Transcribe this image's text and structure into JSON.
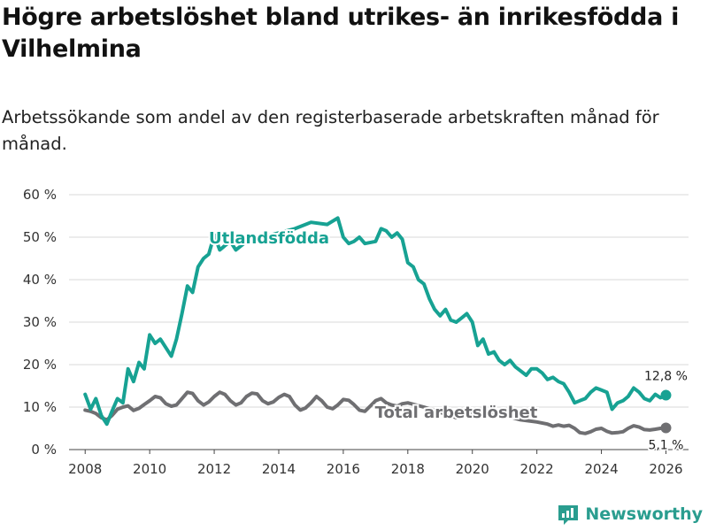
{
  "title": "Högre arbetslöshet bland utrikes- än inrikesfödda i Vilhelmina",
  "subtitle": "Arbetssökande som andel av den registerbaserade arbetskraften månad för månad.",
  "brand": {
    "name": "Newsworthy",
    "icon": "newsworthy-logo-icon"
  },
  "colors": {
    "foreign": "#17a293",
    "total": "#6f6f72",
    "grid": "#d9d9d9",
    "brand": "#2a9d8f"
  },
  "chart_data": {
    "type": "line",
    "title": "Högre arbetslöshet bland utrikes- än inrikesfödda i Vilhelmina",
    "subtitle": "Arbetssökande som andel av den registerbaserade arbetskraften månad för månad.",
    "xlabel": "",
    "ylabel": "",
    "xlim": [
      2007.5,
      2026.7
    ],
    "ylim": [
      0,
      60
    ],
    "grid": true,
    "x_ticks": [
      2008,
      2010,
      2012,
      2014,
      2016,
      2018,
      2020,
      2022,
      2024,
      2026
    ],
    "x_tick_labels": [
      "2008",
      "2010",
      "2012",
      "2014",
      "2016",
      "2018",
      "2020",
      "2022",
      "2024",
      "2026"
    ],
    "y_ticks": [
      0,
      10,
      20,
      30,
      40,
      50,
      60
    ],
    "y_tick_labels": [
      "0 %",
      "10 %",
      "20 %",
      "30 %",
      "40 %",
      "50 %",
      "60 %"
    ],
    "series": [
      {
        "name": "Utlandsfödda",
        "label": "Utlandsfödda",
        "end_label": "12,8 %",
        "points": [
          [
            2008.0,
            13
          ],
          [
            2008.17,
            9.5
          ],
          [
            2008.33,
            12
          ],
          [
            2008.5,
            8
          ],
          [
            2008.67,
            6
          ],
          [
            2008.83,
            9
          ],
          [
            2009.0,
            12
          ],
          [
            2009.17,
            11
          ],
          [
            2009.33,
            19
          ],
          [
            2009.5,
            16
          ],
          [
            2009.67,
            20.5
          ],
          [
            2009.83,
            19
          ],
          [
            2010.0,
            27
          ],
          [
            2010.17,
            25
          ],
          [
            2010.33,
            26
          ],
          [
            2010.5,
            24
          ],
          [
            2010.67,
            22
          ],
          [
            2010.83,
            26
          ],
          [
            2011.0,
            32
          ],
          [
            2011.17,
            38.5
          ],
          [
            2011.33,
            37
          ],
          [
            2011.5,
            43
          ],
          [
            2011.67,
            45
          ],
          [
            2011.83,
            46
          ],
          [
            2012.0,
            50.5
          ],
          [
            2012.17,
            47
          ],
          [
            2012.33,
            48
          ],
          [
            2012.5,
            49
          ],
          [
            2012.67,
            47
          ],
          [
            2013.0,
            49
          ],
          [
            2013.5,
            50
          ],
          [
            2014.0,
            51
          ],
          [
            2014.5,
            52
          ],
          [
            2015.0,
            53.5
          ],
          [
            2015.5,
            53
          ],
          [
            2015.83,
            54.5
          ],
          [
            2016.0,
            50
          ],
          [
            2016.17,
            48.5
          ],
          [
            2016.33,
            49
          ],
          [
            2016.5,
            50
          ],
          [
            2016.67,
            48.5
          ],
          [
            2017.0,
            49
          ],
          [
            2017.17,
            52
          ],
          [
            2017.33,
            51.5
          ],
          [
            2017.5,
            50
          ],
          [
            2017.67,
            51
          ],
          [
            2017.83,
            49.5
          ],
          [
            2018.0,
            44
          ],
          [
            2018.17,
            43
          ],
          [
            2018.33,
            40
          ],
          [
            2018.5,
            39
          ],
          [
            2018.67,
            35.5
          ],
          [
            2018.83,
            33
          ],
          [
            2019.0,
            31.5
          ],
          [
            2019.17,
            33
          ],
          [
            2019.33,
            30.5
          ],
          [
            2019.5,
            30
          ],
          [
            2019.67,
            31
          ],
          [
            2019.83,
            32
          ],
          [
            2020.0,
            30
          ],
          [
            2020.17,
            24.5
          ],
          [
            2020.33,
            26
          ],
          [
            2020.5,
            22.5
          ],
          [
            2020.67,
            23
          ],
          [
            2020.83,
            21
          ],
          [
            2021.0,
            20
          ],
          [
            2021.17,
            21
          ],
          [
            2021.33,
            19.5
          ],
          [
            2021.5,
            18.5
          ],
          [
            2021.67,
            17.5
          ],
          [
            2021.83,
            19
          ],
          [
            2022.0,
            19
          ],
          [
            2022.17,
            18
          ],
          [
            2022.33,
            16.5
          ],
          [
            2022.5,
            17
          ],
          [
            2022.67,
            16
          ],
          [
            2022.83,
            15.5
          ],
          [
            2023.0,
            13.5
          ],
          [
            2023.17,
            11
          ],
          [
            2023.33,
            11.5
          ],
          [
            2023.5,
            12
          ],
          [
            2023.67,
            13.5
          ],
          [
            2023.83,
            14.5
          ],
          [
            2024.0,
            14
          ],
          [
            2024.17,
            13.5
          ],
          [
            2024.33,
            9.5
          ],
          [
            2024.5,
            11
          ],
          [
            2024.67,
            11.5
          ],
          [
            2024.83,
            12.5
          ],
          [
            2025.0,
            14.5
          ],
          [
            2025.17,
            13.5
          ],
          [
            2025.33,
            12
          ],
          [
            2025.5,
            11.5
          ],
          [
            2025.67,
            13
          ],
          [
            2025.83,
            12.2
          ],
          [
            2026.0,
            12.8
          ]
        ]
      },
      {
        "name": "Total arbetslöshet",
        "label": "Total arbetslöshet",
        "end_label": "5,1 %",
        "points": [
          [
            2008.0,
            9.3
          ],
          [
            2008.17,
            9
          ],
          [
            2008.33,
            8.5
          ],
          [
            2008.5,
            7.5
          ],
          [
            2008.67,
            7
          ],
          [
            2008.83,
            8
          ],
          [
            2009.0,
            9.5
          ],
          [
            2009.17,
            10
          ],
          [
            2009.33,
            10.3
          ],
          [
            2009.5,
            9.2
          ],
          [
            2009.67,
            9.7
          ],
          [
            2009.83,
            10.6
          ],
          [
            2010.0,
            11.5
          ],
          [
            2010.17,
            12.5
          ],
          [
            2010.33,
            12.2
          ],
          [
            2010.5,
            10.8
          ],
          [
            2010.67,
            10.2
          ],
          [
            2010.83,
            10.5
          ],
          [
            2011.0,
            12
          ],
          [
            2011.17,
            13.5
          ],
          [
            2011.33,
            13.2
          ],
          [
            2011.5,
            11.5
          ],
          [
            2011.67,
            10.5
          ],
          [
            2011.83,
            11.2
          ],
          [
            2012.0,
            12.5
          ],
          [
            2012.17,
            13.5
          ],
          [
            2012.33,
            13
          ],
          [
            2012.5,
            11.5
          ],
          [
            2012.67,
            10.5
          ],
          [
            2012.83,
            11
          ],
          [
            2013.0,
            12.5
          ],
          [
            2013.17,
            13.3
          ],
          [
            2013.33,
            13.1
          ],
          [
            2013.5,
            11.5
          ],
          [
            2013.67,
            10.8
          ],
          [
            2013.83,
            11.2
          ],
          [
            2014.0,
            12.3
          ],
          [
            2014.17,
            13
          ],
          [
            2014.33,
            12.5
          ],
          [
            2014.5,
            10.5
          ],
          [
            2014.67,
            9.3
          ],
          [
            2014.83,
            9.8
          ],
          [
            2015.0,
            11
          ],
          [
            2015.17,
            12.5
          ],
          [
            2015.33,
            11.5
          ],
          [
            2015.5,
            10
          ],
          [
            2015.67,
            9.6
          ],
          [
            2015.83,
            10.5
          ],
          [
            2016.0,
            11.8
          ],
          [
            2016.17,
            11.6
          ],
          [
            2016.33,
            10.6
          ],
          [
            2016.5,
            9.3
          ],
          [
            2016.67,
            9
          ],
          [
            2016.83,
            10.2
          ],
          [
            2017.0,
            11.5
          ],
          [
            2017.17,
            12
          ],
          [
            2017.33,
            11
          ],
          [
            2017.5,
            10.5
          ],
          [
            2017.67,
            10.2
          ],
          [
            2017.83,
            10.8
          ],
          [
            2018.0,
            11
          ],
          [
            2018.5,
            10
          ],
          [
            2019.0,
            8.8
          ],
          [
            2019.5,
            7.5
          ],
          [
            2020.0,
            8.5
          ],
          [
            2020.5,
            8.5
          ],
          [
            2021.0,
            8
          ],
          [
            2021.5,
            7
          ],
          [
            2022.0,
            6.5
          ],
          [
            2022.33,
            6
          ],
          [
            2022.5,
            5.5
          ],
          [
            2022.67,
            5.8
          ],
          [
            2022.83,
            5.5
          ],
          [
            2023.0,
            5.7
          ],
          [
            2023.17,
            5
          ],
          [
            2023.33,
            4
          ],
          [
            2023.5,
            3.8
          ],
          [
            2023.67,
            4.2
          ],
          [
            2023.83,
            4.8
          ],
          [
            2024.0,
            5
          ],
          [
            2024.17,
            4.3
          ],
          [
            2024.33,
            3.9
          ],
          [
            2024.5,
            4
          ],
          [
            2024.67,
            4.2
          ],
          [
            2024.83,
            5
          ],
          [
            2025.0,
            5.6
          ],
          [
            2025.17,
            5.3
          ],
          [
            2025.33,
            4.7
          ],
          [
            2025.5,
            4.6
          ],
          [
            2025.67,
            4.8
          ],
          [
            2025.83,
            5
          ],
          [
            2026.0,
            5.1
          ]
        ]
      }
    ],
    "annotations": [
      {
        "text": "Utlandsfödda",
        "series": "Utlandsfödda"
      },
      {
        "text": "Total arbetslöshet",
        "series": "Total arbetslöshet"
      },
      {
        "text": "12,8 %",
        "series": "Utlandsfödda",
        "position": "end"
      },
      {
        "text": "5,1 %",
        "series": "Total arbetslöshet",
        "position": "end"
      }
    ]
  }
}
